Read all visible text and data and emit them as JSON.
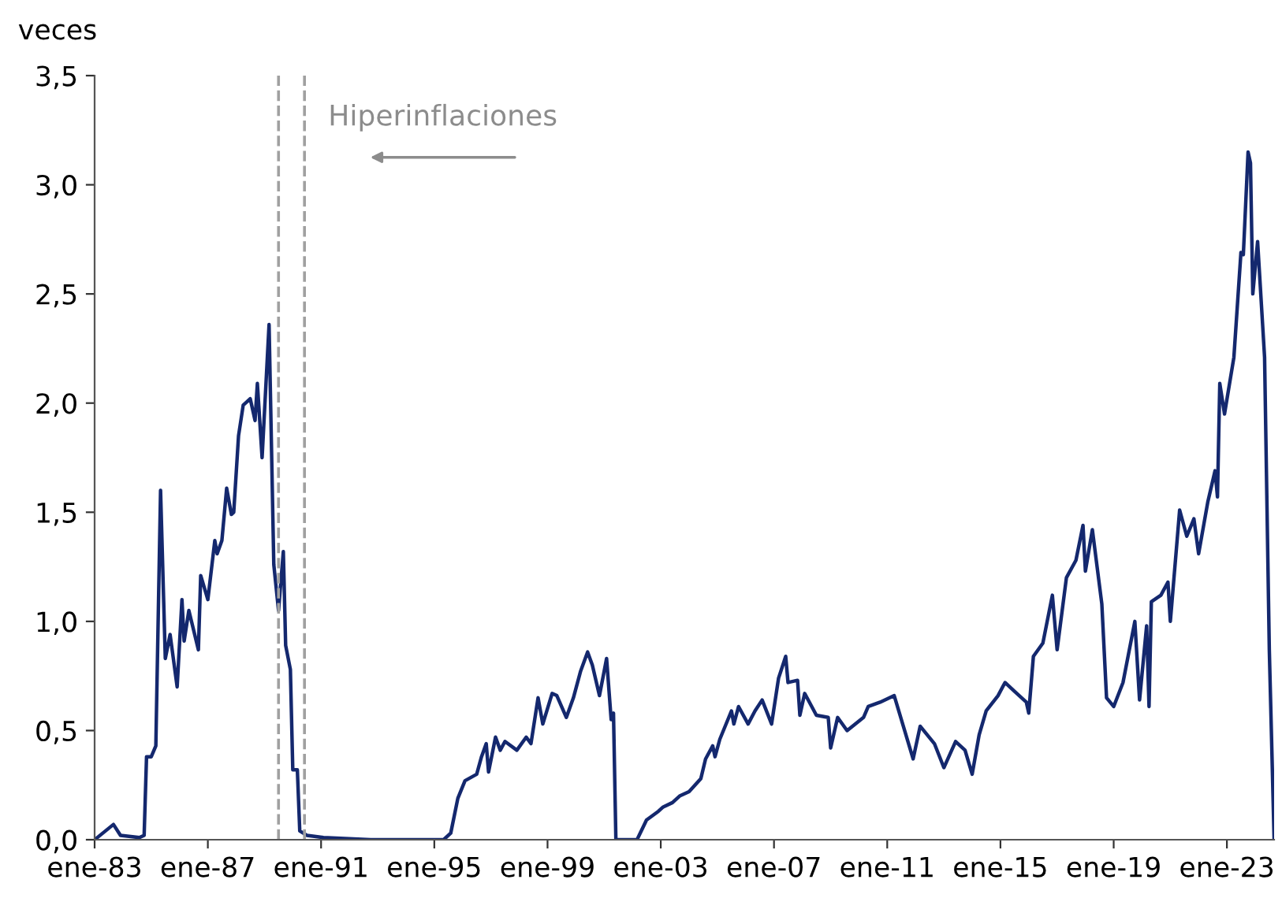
{
  "chart_data": {
    "type": "line",
    "ylabel": "veces",
    "x": [
      "1983-01",
      "1983-09",
      "1983-12",
      "1984-08",
      "1984-10",
      "1984-11",
      "1985-01",
      "1985-03",
      "1985-05",
      "1985-07",
      "1985-09",
      "1985-12",
      "1986-02",
      "1986-03",
      "1986-05",
      "1986-09",
      "1986-10",
      "1987-01",
      "1987-04",
      "1987-05",
      "1987-07",
      "1987-09",
      "1987-11",
      "1987-12",
      "1988-02",
      "1988-04",
      "1988-07",
      "1988-09",
      "1988-10",
      "1988-12",
      "1989-03",
      "1989-05",
      "1989-07",
      "1989-09",
      "1989-10",
      "1989-12",
      "1990-01",
      "1990-03",
      "1990-04",
      "1990-07",
      "1991-02",
      "1992-10",
      "1995-05",
      "1995-08",
      "1995-11",
      "1996-02",
      "1996-07",
      "1996-09",
      "1996-11",
      "1996-12",
      "1997-03",
      "1997-05",
      "1997-07",
      "1997-12",
      "1998-04",
      "1998-06",
      "1998-09",
      "1998-11",
      "1999-03",
      "1999-05",
      "1999-09",
      "1999-12",
      "2000-03",
      "2000-06",
      "2000-08",
      "2000-11",
      "2001-02",
      "2001-04",
      "2001-05",
      "2001-06",
      "2002-03",
      "2002-07",
      "2002-12",
      "2003-02",
      "2003-06",
      "2003-09",
      "2004-01",
      "2004-06",
      "2004-08",
      "2004-11",
      "2004-12",
      "2005-02",
      "2005-07",
      "2005-08",
      "2005-10",
      "2006-02",
      "2006-05",
      "2006-08",
      "2006-12",
      "2007-03",
      "2007-06",
      "2007-07",
      "2007-11",
      "2007-12",
      "2008-02",
      "2008-07",
      "2008-12",
      "2009-01",
      "2009-04",
      "2009-08",
      "2010-03",
      "2010-05",
      "2010-10",
      "2011-04",
      "2011-12",
      "2012-03",
      "2012-09",
      "2013-01",
      "2013-06",
      "2013-10",
      "2014-01",
      "2014-04",
      "2014-07",
      "2014-12",
      "2015-03",
      "2015-07",
      "2015-12",
      "2016-01",
      "2016-03",
      "2016-07",
      "2016-11",
      "2017-01",
      "2017-05",
      "2017-09",
      "2017-12",
      "2018-01",
      "2018-04",
      "2018-08",
      "2018-10",
      "2019-01",
      "2019-05",
      "2019-10",
      "2019-12",
      "2020-03",
      "2020-04",
      "2020-05",
      "2020-09",
      "2020-12",
      "2021-01",
      "2021-05",
      "2021-08",
      "2021-11",
      "2022-01",
      "2022-05",
      "2022-08",
      "2022-09",
      "2022-10",
      "2022-12",
      "2023-04",
      "2023-07",
      "2023-08",
      "2023-10",
      "2023-11",
      "2023-12",
      "2024-02",
      "2024-05",
      "2024-07",
      "2024-09"
    ],
    "series": [
      {
        "color": "#14286e",
        "values": [
          0.0,
          0.07,
          0.02,
          0.01,
          0.02,
          0.38,
          0.38,
          0.43,
          1.6,
          0.83,
          0.94,
          0.7,
          1.1,
          0.91,
          1.05,
          0.87,
          1.21,
          1.1,
          1.37,
          1.31,
          1.37,
          1.61,
          1.49,
          1.5,
          1.85,
          1.99,
          2.02,
          1.92,
          2.09,
          1.75,
          2.36,
          1.26,
          1.05,
          1.32,
          0.89,
          0.78,
          0.32,
          0.32,
          0.04,
          0.02,
          0.01,
          0.0,
          0.0,
          0.03,
          0.19,
          0.27,
          0.3,
          0.38,
          0.44,
          0.31,
          0.47,
          0.41,
          0.45,
          0.41,
          0.47,
          0.44,
          0.65,
          0.53,
          0.67,
          0.66,
          0.56,
          0.65,
          0.77,
          0.86,
          0.8,
          0.66,
          0.83,
          0.55,
          0.58,
          0.0,
          0.0,
          0.09,
          0.13,
          0.15,
          0.17,
          0.2,
          0.22,
          0.28,
          0.37,
          0.43,
          0.38,
          0.46,
          0.59,
          0.53,
          0.61,
          0.53,
          0.59,
          0.64,
          0.53,
          0.74,
          0.84,
          0.72,
          0.73,
          0.57,
          0.67,
          0.57,
          0.56,
          0.42,
          0.56,
          0.5,
          0.56,
          0.61,
          0.63,
          0.66,
          0.37,
          0.52,
          0.44,
          0.33,
          0.45,
          0.41,
          0.3,
          0.48,
          0.59,
          0.66,
          0.72,
          0.68,
          0.63,
          0.58,
          0.84,
          0.9,
          1.12,
          0.87,
          1.2,
          1.28,
          1.44,
          1.23,
          1.42,
          1.08,
          0.65,
          0.61,
          0.72,
          1.0,
          0.64,
          0.98,
          0.61,
          1.09,
          1.12,
          1.18,
          1.0,
          1.51,
          1.39,
          1.47,
          1.31,
          1.55,
          1.69,
          1.57,
          2.09,
          1.95,
          2.21,
          2.69,
          2.68,
          3.15,
          3.1,
          2.5,
          2.74,
          2.21,
          0.87,
          0.0
        ]
      }
    ],
    "xlim": [
      "1983-01",
      "2024-09"
    ],
    "xticks": [
      {
        "value": "1983-01",
        "label": "ene-83"
      },
      {
        "value": "1987-01",
        "label": "ene-87"
      },
      {
        "value": "1991-01",
        "label": "ene-91"
      },
      {
        "value": "1995-01",
        "label": "ene-95"
      },
      {
        "value": "1999-01",
        "label": "ene-99"
      },
      {
        "value": "2003-01",
        "label": "ene-03"
      },
      {
        "value": "2007-01",
        "label": "ene-07"
      },
      {
        "value": "2011-01",
        "label": "ene-11"
      },
      {
        "value": "2015-01",
        "label": "ene-15"
      },
      {
        "value": "2019-01",
        "label": "ene-19"
      },
      {
        "value": "2023-01",
        "label": "ene-23"
      }
    ],
    "ylim": [
      0,
      3.5
    ],
    "yticks": [
      {
        "value": 0,
        "label": "0,0"
      },
      {
        "value": 0.5,
        "label": "0,5"
      },
      {
        "value": 1,
        "label": "1,0"
      },
      {
        "value": 1.5,
        "label": "1,5"
      },
      {
        "value": 2,
        "label": "2,0"
      },
      {
        "value": 2.5,
        "label": "2,5"
      },
      {
        "value": 3,
        "label": "3,0"
      },
      {
        "value": 3.5,
        "label": "3,5"
      }
    ],
    "ref_lines": [
      {
        "axis": "x",
        "value": "1989-07",
        "label": null,
        "color": "#a0a0a0",
        "line_style": "dashed"
      },
      {
        "axis": "x",
        "value": "1990-06",
        "label": null,
        "color": "#a0a0a0",
        "line_style": "dashed"
      }
    ],
    "annotations": [
      "Hiperinflaciones"
    ],
    "grid": false,
    "legend": false,
    "marker": "none",
    "line_style": "solid"
  }
}
